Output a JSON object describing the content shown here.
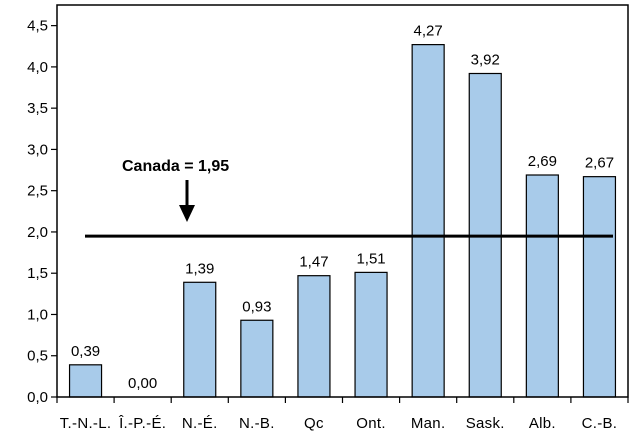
{
  "chart_data": {
    "type": "bar",
    "categories": [
      "T.-N.-L.",
      "Î.-P.-É.",
      "N.-É.",
      "N.-B.",
      "Qc",
      "Ont.",
      "Man.",
      "Sask.",
      "Alb.",
      "C.-B."
    ],
    "values": [
      0.39,
      0.0,
      1.39,
      0.93,
      1.47,
      1.51,
      4.27,
      3.92,
      2.69,
      2.67
    ],
    "value_labels": [
      "0,39",
      "0,00",
      "1,39",
      "0,93",
      "1,47",
      "1,51",
      "4,27",
      "3,92",
      "2,69",
      "2,67"
    ],
    "ylim": [
      0,
      4.75
    ],
    "yticks": [
      0,
      0.5,
      1.0,
      1.5,
      2.0,
      2.5,
      3.0,
      3.5,
      4.0,
      4.5
    ],
    "ytick_labels": [
      "0,0",
      "0,5",
      "1,0",
      "1,5",
      "2,0",
      "2,5",
      "3,0",
      "3,5",
      "4,0",
      "4,5"
    ],
    "reference_line": {
      "value": 1.95,
      "label": "Canada = 1,95"
    },
    "title": "",
    "xlabel": "",
    "ylabel": "",
    "grid": false,
    "legend": "none",
    "bar_color": "#a8cbea",
    "bar_edge_color": "#000000"
  }
}
